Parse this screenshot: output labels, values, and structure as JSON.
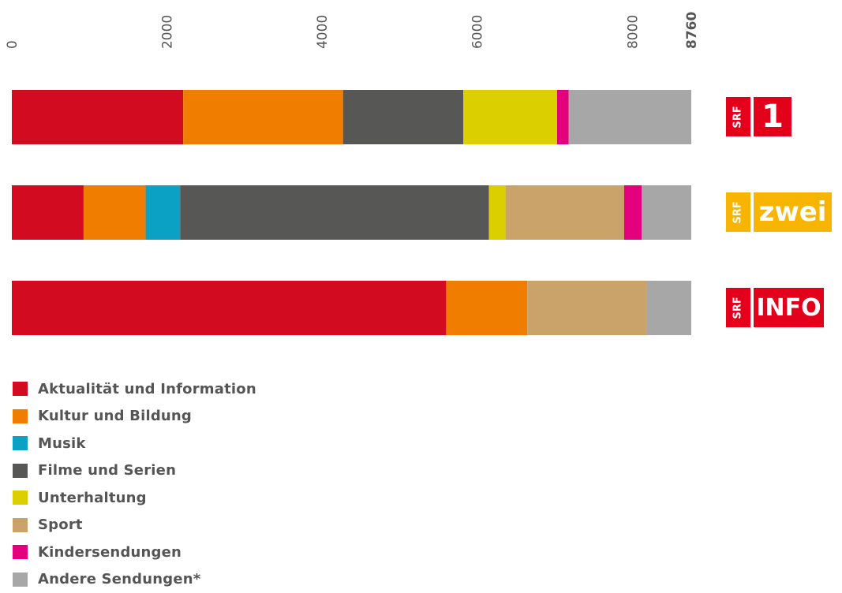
{
  "chart_data": {
    "type": "bar",
    "orientation": "horizontal",
    "stacked": true,
    "xlim": [
      0,
      8760
    ],
    "x_ticks": [
      "0",
      "2000",
      "4000",
      "6000",
      "8000",
      "8760"
    ],
    "categories": [
      "SRF 1",
      "SRF zwei",
      "SRF info"
    ],
    "series": [
      {
        "name": "Aktualität und Information",
        "color": "#d30b21",
        "values": [
          2210,
          925,
          5600
        ]
      },
      {
        "name": "Kultur und Bildung",
        "color": "#f07d00",
        "values": [
          2060,
          800,
          1045
        ]
      },
      {
        "name": "Musik",
        "color": "#0aa1c4",
        "values": [
          0,
          445,
          0
        ]
      },
      {
        "name": "Filme und Serien",
        "color": "#575756",
        "values": [
          1550,
          3980,
          0
        ]
      },
      {
        "name": "Unterhaltung",
        "color": "#dccf00",
        "values": [
          1210,
          215,
          0
        ]
      },
      {
        "name": "Sport",
        "color": "#c9a36a",
        "values": [
          0,
          1530,
          1545
        ]
      },
      {
        "name": "Kindersendungen",
        "color": "#e4007d",
        "values": [
          150,
          225,
          0
        ]
      },
      {
        "name": "Andere Sendungen*",
        "color": "#a7a7a7",
        "values": [
          1580,
          640,
          570
        ]
      }
    ]
  },
  "logos": [
    {
      "brand": "SRF",
      "name": "1",
      "color": "#e2001a",
      "name_width": 48,
      "font_size": 40
    },
    {
      "brand": "SRF",
      "name": "zwei",
      "color": "#f7b400",
      "name_width": 99,
      "font_size": 34
    },
    {
      "brand": "SRF",
      "name": "INFO",
      "color": "#e2001a",
      "name_width": 89,
      "font_size": 30
    }
  ]
}
